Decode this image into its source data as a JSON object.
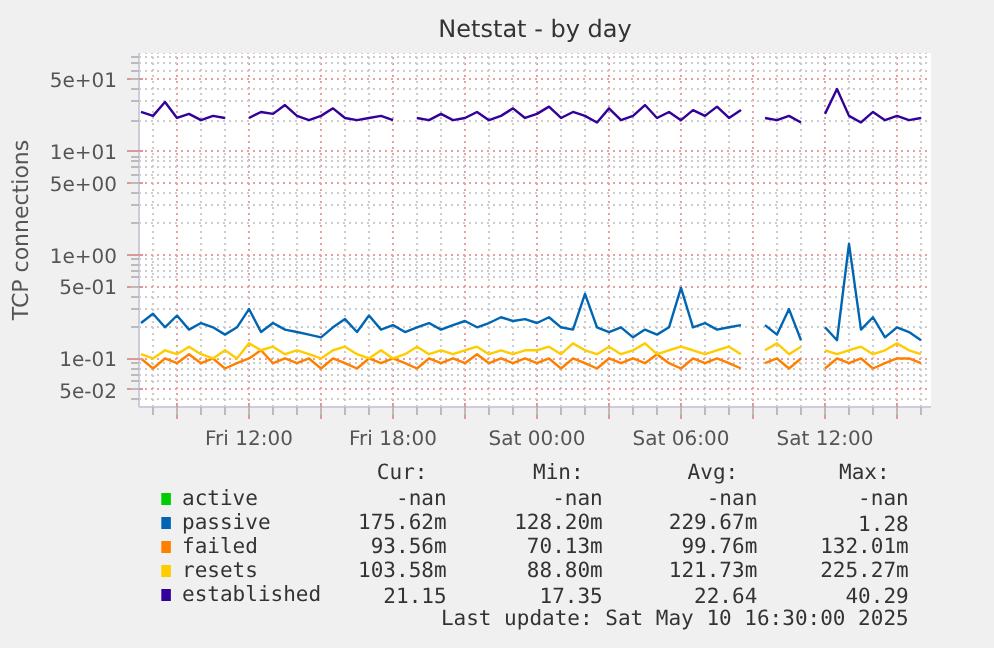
{
  "chart_data": {
    "type": "line",
    "title": "Netstat - by day",
    "ylabel": "TCP connections",
    "log": true,
    "ylim": [
      0.034,
      89
    ],
    "yticks": [
      {
        "value": 0.05,
        "label": "5e-02"
      },
      {
        "value": 0.1,
        "label": "1e-01"
      },
      {
        "value": 0.5,
        "label": "5e-01"
      },
      {
        "value": 1,
        "label": "1e+00"
      },
      {
        "value": 5,
        "label": "5e+00"
      },
      {
        "value": 10,
        "label": "1e+01"
      },
      {
        "value": 50,
        "label": "5e+01"
      }
    ],
    "xlim": [
      "2025-05-09T07:25",
      "2025-05-10T16:25"
    ],
    "xticks": [
      {
        "value": "2025-05-09T09:00",
        "label": null
      },
      {
        "value": "2025-05-09T12:00",
        "label": "Fri 12:00"
      },
      {
        "value": "2025-05-09T15:00",
        "label": null
      },
      {
        "value": "2025-05-09T18:00",
        "label": "Fri 18:00"
      },
      {
        "value": "2025-05-09T21:00",
        "label": null
      },
      {
        "value": "2025-05-10T00:00",
        "label": "Sat 00:00"
      },
      {
        "value": "2025-05-10T03:00",
        "label": null
      },
      {
        "value": "2025-05-10T06:00",
        "label": "Sat 06:00"
      },
      {
        "value": "2025-05-10T09:00",
        "label": null
      },
      {
        "value": "2025-05-10T12:00",
        "label": "Sat 12:00"
      },
      {
        "value": "2025-05-10T15:00",
        "label": null
      }
    ],
    "grid": true,
    "legend": "bottom",
    "x": [
      "2025-05-09T07:30",
      "2025-05-09T08:00",
      "2025-05-09T08:30",
      "2025-05-09T09:00",
      "2025-05-09T09:30",
      "2025-05-09T10:00",
      "2025-05-09T10:30",
      "2025-05-09T11:00",
      "2025-05-09T11:30",
      "2025-05-09T12:00",
      "2025-05-09T12:30",
      "2025-05-09T13:00",
      "2025-05-09T13:30",
      "2025-05-09T14:00",
      "2025-05-09T14:30",
      "2025-05-09T15:00",
      "2025-05-09T15:30",
      "2025-05-09T16:00",
      "2025-05-09T16:30",
      "2025-05-09T17:00",
      "2025-05-09T17:30",
      "2025-05-09T18:00",
      "2025-05-09T18:30",
      "2025-05-09T19:00",
      "2025-05-09T19:30",
      "2025-05-09T20:00",
      "2025-05-09T20:30",
      "2025-05-09T21:00",
      "2025-05-09T21:30",
      "2025-05-09T22:00",
      "2025-05-09T22:30",
      "2025-05-09T23:00",
      "2025-05-09T23:30",
      "2025-05-10T00:00",
      "2025-05-10T00:30",
      "2025-05-10T01:00",
      "2025-05-10T01:30",
      "2025-05-10T02:00",
      "2025-05-10T02:30",
      "2025-05-10T03:00",
      "2025-05-10T03:30",
      "2025-05-10T04:00",
      "2025-05-10T04:30",
      "2025-05-10T05:00",
      "2025-05-10T05:30",
      "2025-05-10T06:00",
      "2025-05-10T06:30",
      "2025-05-10T07:00",
      "2025-05-10T07:30",
      "2025-05-10T08:00",
      "2025-05-10T08:30",
      "2025-05-10T09:00",
      "2025-05-10T09:30",
      "2025-05-10T10:00",
      "2025-05-10T10:30",
      "2025-05-10T11:00",
      "2025-05-10T11:30",
      "2025-05-10T12:00",
      "2025-05-10T12:30",
      "2025-05-10T13:00",
      "2025-05-10T13:30",
      "2025-05-10T14:00",
      "2025-05-10T14:30",
      "2025-05-10T15:00",
      "2025-05-10T15:30",
      "2025-05-10T16:00"
    ],
    "series": [
      {
        "name": "active",
        "color": "#00cc00",
        "values": [
          null,
          null,
          null,
          null,
          null,
          null,
          null,
          null,
          null,
          null,
          null,
          null,
          null,
          null,
          null,
          null,
          null,
          null,
          null,
          null,
          null,
          null,
          null,
          null,
          null,
          null,
          null,
          null,
          null,
          null,
          null,
          null,
          null,
          null,
          null,
          null,
          null,
          null,
          null,
          null,
          null,
          null,
          null,
          null,
          null,
          null,
          null,
          null,
          null,
          null,
          null,
          null,
          null,
          null,
          null,
          null,
          null,
          null,
          null,
          null,
          null,
          null,
          null,
          null,
          null,
          null
        ]
      },
      {
        "name": "passive",
        "color": "#0066b3",
        "values": [
          0.22,
          0.27,
          0.2,
          0.26,
          0.19,
          0.22,
          0.2,
          0.17,
          0.2,
          0.3,
          0.18,
          0.22,
          0.19,
          0.18,
          0.17,
          0.16,
          0.2,
          0.24,
          0.18,
          0.26,
          0.19,
          0.21,
          0.18,
          0.2,
          0.22,
          0.19,
          0.21,
          0.23,
          0.2,
          0.22,
          0.25,
          0.23,
          0.24,
          0.22,
          0.25,
          0.2,
          0.19,
          0.42,
          0.2,
          0.18,
          0.2,
          0.16,
          0.19,
          0.17,
          0.2,
          0.48,
          0.2,
          0.22,
          0.19,
          0.2,
          0.21,
          null,
          0.21,
          0.17,
          0.3,
          0.15,
          null,
          0.2,
          0.15,
          1.28,
          0.19,
          0.25,
          0.16,
          0.2,
          0.18,
          0.15
        ]
      },
      {
        "name": "failed",
        "color": "#ff8000",
        "values": [
          0.1,
          0.08,
          0.1,
          0.09,
          0.11,
          0.09,
          0.1,
          0.08,
          0.09,
          0.1,
          0.12,
          0.09,
          0.1,
          0.09,
          0.1,
          0.08,
          0.1,
          0.09,
          0.08,
          0.1,
          0.09,
          0.1,
          0.09,
          0.08,
          0.1,
          0.09,
          0.1,
          0.09,
          0.11,
          0.09,
          0.1,
          0.09,
          0.1,
          0.09,
          0.1,
          0.08,
          0.1,
          0.09,
          0.08,
          0.1,
          0.09,
          0.1,
          0.09,
          0.11,
          0.09,
          0.08,
          0.1,
          0.09,
          0.1,
          0.09,
          0.08,
          null,
          0.09,
          0.1,
          0.08,
          0.1,
          null,
          0.08,
          0.1,
          0.09,
          0.1,
          0.08,
          0.09,
          0.1,
          0.1,
          0.09
        ]
      },
      {
        "name": "resets",
        "color": "#ffcc00",
        "values": [
          0.11,
          0.1,
          0.12,
          0.11,
          0.13,
          0.11,
          0.1,
          0.12,
          0.1,
          0.14,
          0.12,
          0.13,
          0.11,
          0.12,
          0.11,
          0.1,
          0.12,
          0.13,
          0.11,
          0.1,
          0.12,
          0.1,
          0.11,
          0.13,
          0.11,
          0.12,
          0.11,
          0.12,
          0.13,
          0.11,
          0.12,
          0.11,
          0.12,
          0.12,
          0.13,
          0.11,
          0.14,
          0.12,
          0.11,
          0.13,
          0.11,
          0.12,
          0.14,
          0.11,
          0.12,
          0.13,
          0.12,
          0.11,
          0.12,
          0.13,
          0.11,
          null,
          0.12,
          0.14,
          0.11,
          0.13,
          null,
          0.12,
          0.11,
          0.12,
          0.13,
          0.11,
          0.12,
          0.14,
          0.12,
          0.11
        ]
      },
      {
        "name": "established",
        "color": "#330099",
        "values": [
          24,
          22,
          30,
          21,
          23,
          20,
          22,
          21,
          null,
          21,
          24,
          23,
          28,
          22,
          20,
          22,
          26,
          21,
          20,
          21,
          22,
          20,
          null,
          21,
          20,
          23,
          20,
          21,
          24,
          20,
          22,
          26,
          21,
          23,
          27,
          21,
          24,
          22,
          19,
          26,
          20,
          22,
          28,
          21,
          24,
          20,
          25,
          22,
          27,
          21,
          25,
          null,
          21,
          20,
          22,
          19,
          null,
          23,
          40,
          22,
          19,
          24,
          20,
          22,
          20,
          21
        ]
      }
    ],
    "annotations": [
      "Cur:",
      "Min:",
      "Avg:",
      "Max:",
      "-nan",
      "-nan",
      "-nan",
      "-nan",
      "175.62m",
      "128.20m",
      "229.67m",
      "1.28",
      "93.56m",
      "70.13m",
      "99.76m",
      "132.01m",
      "103.58m",
      "88.80m",
      "121.73m",
      "225.27m",
      "21.15",
      "17.35",
      "22.64",
      "40.29",
      "Last update: Sat May 10 16:30:00 2025"
    ]
  }
}
